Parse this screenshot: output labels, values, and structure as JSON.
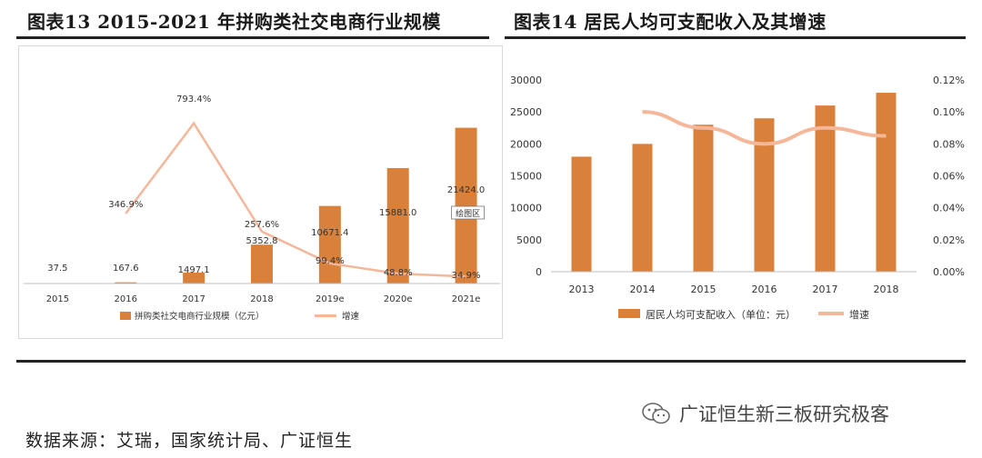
{
  "left_title": "图表13 2015-2021 年拼购类社交电商行业规模",
  "right_title": "图表14 居民人均可支配收入及其增速",
  "source_text": "数据来源：艾瑞，国家统计局、广证恒生",
  "watermark": {
    "text": "广证恒生新三板研究极客",
    "icon": "wechat-icon"
  },
  "colors": {
    "bar": "#d9803a",
    "line": "#f4b79a",
    "rule": "#1a1a1a"
  },
  "chart_data": [
    {
      "type": "bar",
      "categories": [
        "2015",
        "2016",
        "2017",
        "2018",
        "2019e",
        "2020e",
        "2021e"
      ],
      "series": [
        {
          "name": "拼购类社交电商行业规模（亿元）",
          "type": "bar",
          "values": [
            37.5,
            167.6,
            1497.1,
            5352.8,
            10671.4,
            15881.0,
            21424.0
          ],
          "labels": [
            "37.5",
            "167.6",
            "1497.1",
            "5352.8",
            "10671.4",
            "15881.0",
            "21424.0"
          ]
        },
        {
          "name": "增速",
          "type": "line",
          "values": [
            null,
            346.9,
            793.4,
            257.6,
            99.4,
            48.8,
            34.9
          ],
          "labels": [
            "",
            "346.9%",
            "793.4%",
            "257.6%",
            "99.4%",
            "48.8%",
            "34.9%"
          ]
        }
      ],
      "bar_ylim": [
        0,
        25000
      ],
      "line_ylim": [
        0,
        900
      ],
      "annotation": "绘图区",
      "legend": "bottom",
      "grid": false
    },
    {
      "type": "bar",
      "categories": [
        "2013",
        "2014",
        "2015",
        "2016",
        "2017",
        "2018"
      ],
      "series": [
        {
          "name": "居民人均可支配收入（单位：元）",
          "type": "bar",
          "values": [
            18000,
            20000,
            23000,
            24000,
            26000,
            28000
          ]
        },
        {
          "name": "增速",
          "type": "line",
          "axis": "right",
          "values": [
            null,
            0.1,
            0.09,
            0.08,
            0.09,
            0.085
          ]
        }
      ],
      "ylim": [
        0,
        30000
      ],
      "y_ticks": [
        "0",
        "5000",
        "10000",
        "15000",
        "20000",
        "25000",
        "30000"
      ],
      "y2lim": [
        0,
        0.12
      ],
      "y2_ticks": [
        "0.00%",
        "0.02%",
        "0.04%",
        "0.06%",
        "0.08%",
        "0.10%",
        "0.12%"
      ],
      "legend": "bottom",
      "grid": false
    }
  ]
}
